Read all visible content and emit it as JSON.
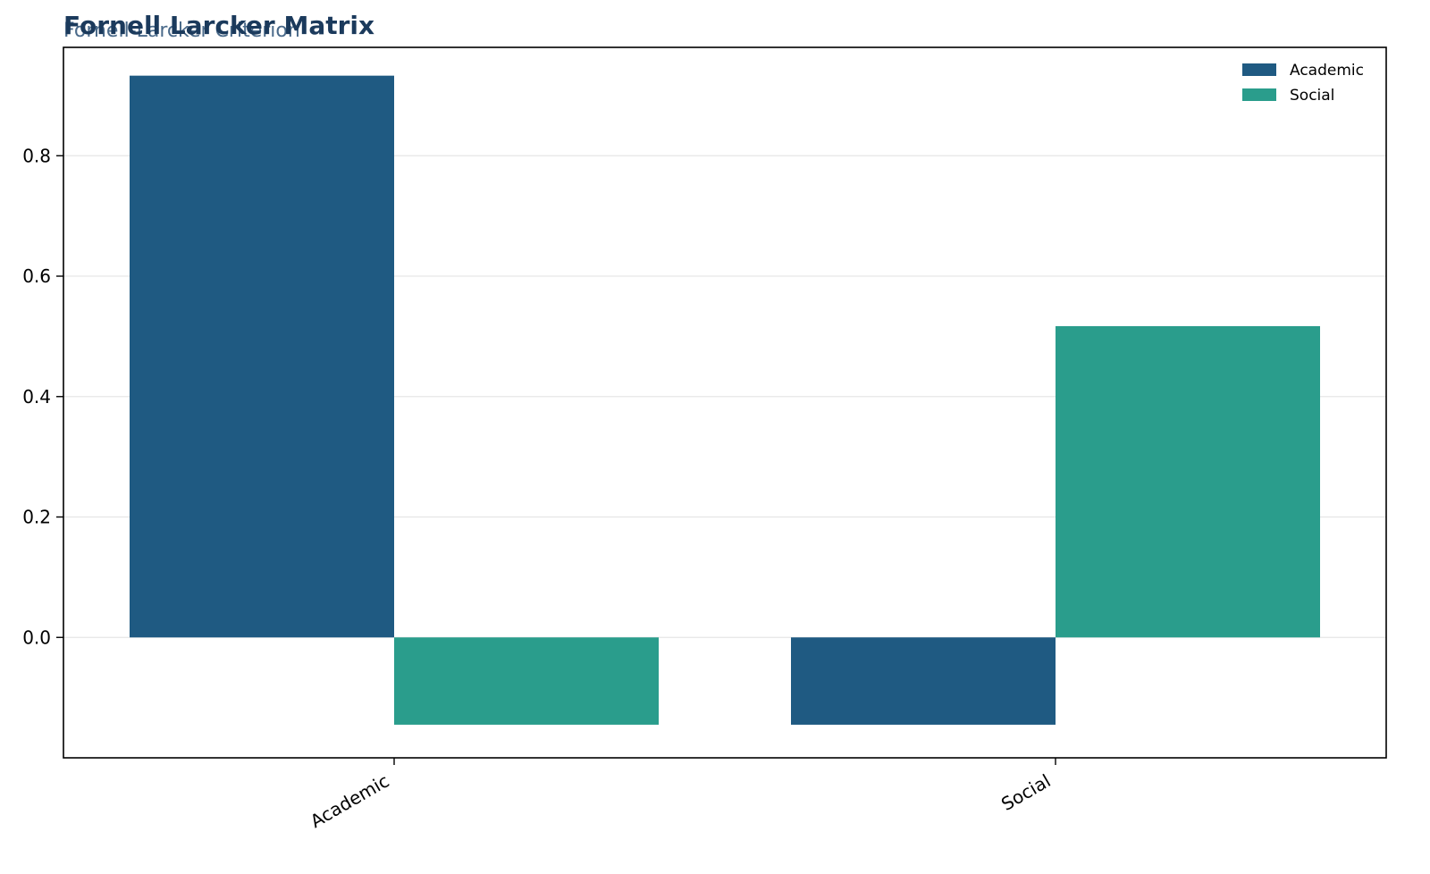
{
  "chart_data": {
    "type": "bar",
    "title": "Fornell Larcker Matrix",
    "subtitle": "Fornell-Larcker Criterion",
    "xlabel": "",
    "ylabel": "",
    "categories": [
      "Academic",
      "Social"
    ],
    "series": [
      {
        "name": "Academic",
        "values": [
          0.933,
          -0.145
        ],
        "color": "#1f5a82"
      },
      {
        "name": "Social",
        "values": [
          -0.145,
          0.517
        ],
        "color": "#2a9d8c"
      }
    ],
    "ylim": [
      -0.2,
      0.98
    ],
    "yticks": [
      0.0,
      0.2,
      0.4,
      0.6,
      0.8
    ],
    "ytick_labels": [
      "0.0",
      "0.2",
      "0.4",
      "0.6",
      "0.8"
    ],
    "grid": true,
    "legend_position": "top-right",
    "colors": {
      "title": "#1b3a5c",
      "subtitle": "#4a6a8a",
      "grid": "#e6e6e6",
      "axis": "#000000"
    }
  }
}
